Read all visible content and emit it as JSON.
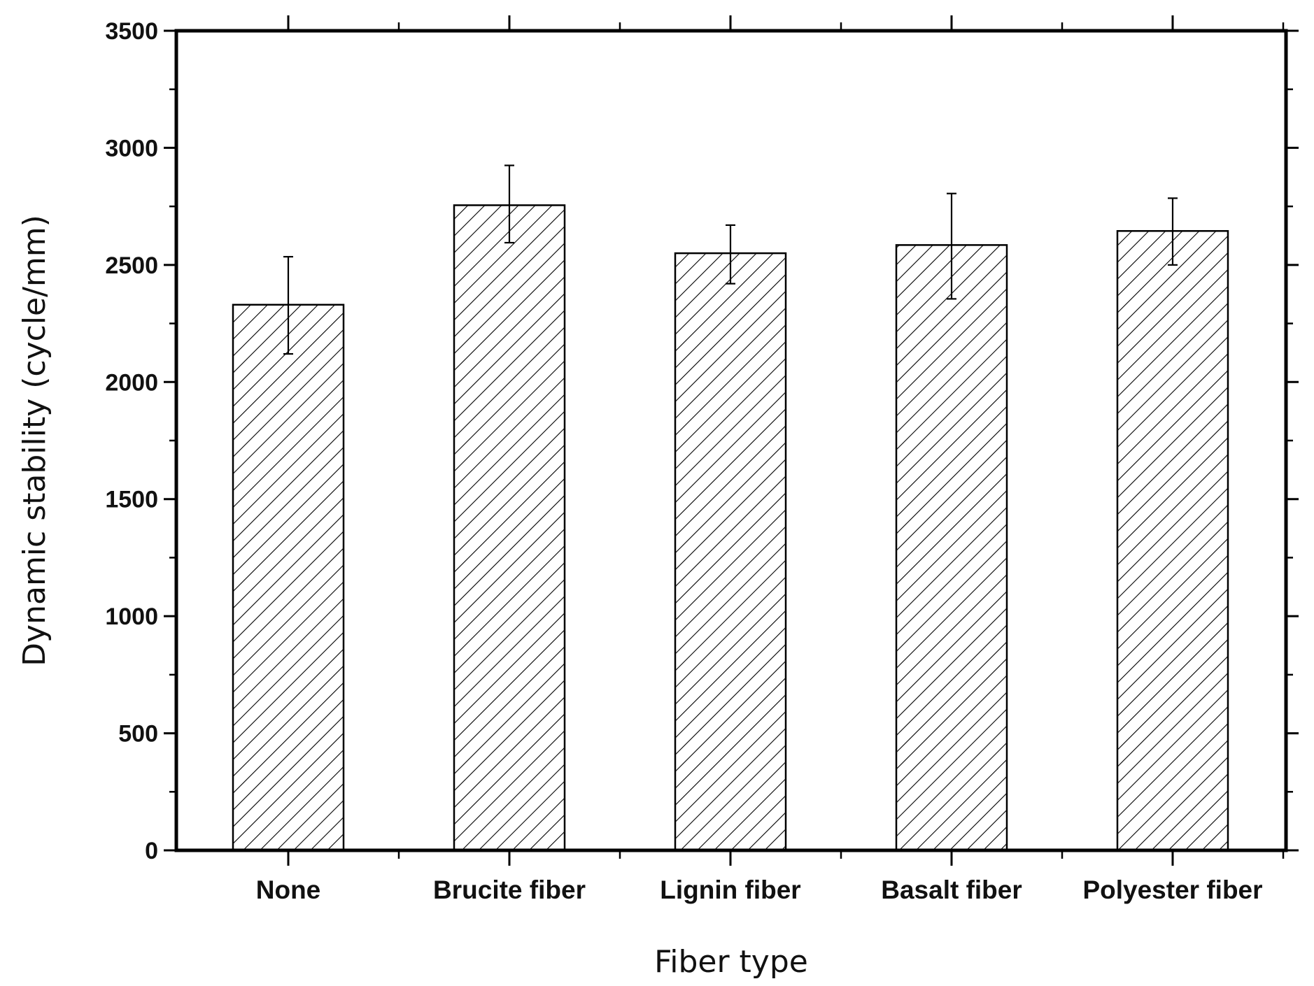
{
  "chart_data": {
    "type": "bar",
    "title": "",
    "xlabel": "Fiber type",
    "ylabel": "Dynamic stability (cycle/mm)",
    "ylim": [
      0,
      3500
    ],
    "yticks": [
      0,
      500,
      1000,
      1500,
      2000,
      2500,
      3000,
      3500
    ],
    "categories": [
      "None",
      "Brucite fiber",
      "Lignin fiber",
      "Basalt fiber",
      "Polyester fiber"
    ],
    "values": [
      2330,
      2755,
      2550,
      2585,
      2645
    ],
    "error_low": [
      2120,
      2595,
      2420,
      2355,
      2500
    ],
    "error_high": [
      2535,
      2925,
      2670,
      2805,
      2785
    ],
    "fill_pattern": "diagonal-hatch",
    "grid": false,
    "legend": "none",
    "colors": {
      "bar_stroke": "#000000",
      "bar_fill": "#ffffff",
      "hatch": "#000000"
    }
  }
}
